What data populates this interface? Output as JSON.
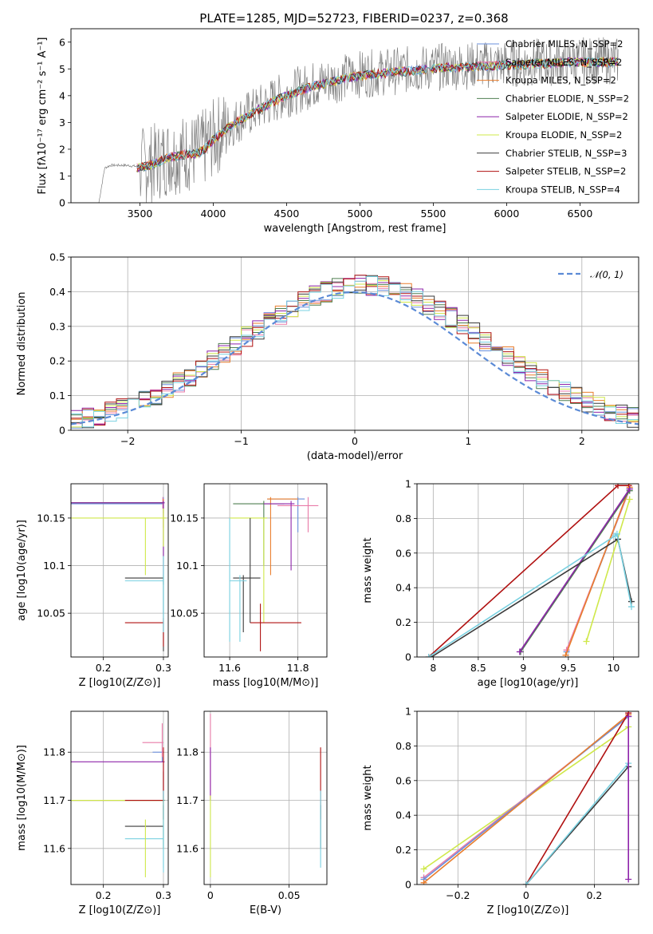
{
  "figure": {
    "title": "PLATE=1285, MJD=52723, FIBERID=0237, z=0.368"
  },
  "colors": {
    "Chabrier MILES": "#6a8fdc",
    "Salpeter MILES": "#e97ba8",
    "Kroupa MILES": "#e97e2d",
    "Chabrier ELODIE": "#4f7f52",
    "Salpeter ELODIE": "#8e24aa",
    "Kroupa ELODIE": "#cfe84a",
    "Chabrier STELIB": "#3a3a3a",
    "Salpeter STELIB": "#b01010",
    "Kroupa STELIB": "#79d1e1",
    "data": "#808080",
    "normal_curve": "#5b8ad6"
  },
  "chart_data": [
    {
      "id": "spectrum",
      "type": "line",
      "xlabel": "wavelength [Angstrom, rest frame]",
      "ylabel": "Flux [fλ10⁻¹⁷ erg cm⁻² s⁻¹ A⁻¹]",
      "xlim": [
        3030,
        6900
      ],
      "ylim": [
        0,
        6.5
      ],
      "xticks": [
        3500,
        4000,
        4500,
        5000,
        5500,
        6000,
        6500
      ],
      "yticks": [
        0,
        1,
        2,
        3,
        4,
        5,
        6
      ],
      "legend_position": "upper right",
      "legend": [
        "Chabrier MILES, N_SSP=2",
        "Salpeter MILES, N_SSP=2",
        "Kroupa MILES, N_SSP=2",
        "Chabrier ELODIE, N_SSP=2",
        "Salpeter ELODIE, N_SSP=2",
        "Kroupa ELODIE, N_SSP=2",
        "Chabrier STELIB, N_SSP=3",
        "Salpeter STELIB, N_SSP=2",
        "Kroupa STELIB, N_SSP=4"
      ],
      "legend_series": [
        "Chabrier MILES",
        "Salpeter MILES",
        "Kroupa MILES",
        "Chabrier ELODIE",
        "Salpeter ELODIE",
        "Kroupa ELODIE",
        "Chabrier STELIB",
        "Salpeter STELIB",
        "Kroupa STELIB"
      ],
      "data_continuum": {
        "wavelength": [
          3220,
          3260,
          3300,
          3400,
          3500,
          3600,
          3700,
          3800,
          3900,
          3950,
          4000,
          4100,
          4200,
          4300,
          4400,
          4500,
          4600,
          4700,
          4800,
          4900,
          5000,
          5100,
          5200,
          5300,
          5400,
          5500,
          5600,
          5700,
          5800,
          5900,
          6000,
          6100,
          6200,
          6300,
          6400,
          6500,
          6600,
          6700,
          6760
        ],
        "flux": [
          0.0,
          1.3,
          1.4,
          1.4,
          1.35,
          1.5,
          1.75,
          1.85,
          1.9,
          2.1,
          2.4,
          2.85,
          3.2,
          3.5,
          3.8,
          4.05,
          4.25,
          4.45,
          4.55,
          4.7,
          4.8,
          4.85,
          4.9,
          4.95,
          5.0,
          5.05,
          5.1,
          5.1,
          5.15,
          5.15,
          5.2,
          5.2,
          5.25,
          5.25,
          5.3,
          5.3,
          5.3,
          5.3,
          5.3
        ]
      },
      "data_noise_start": 3500
    },
    {
      "id": "residuals",
      "type": "histogram",
      "xlabel": "(data-model)/error",
      "ylabel": "Normed distribution",
      "xlim": [
        -2.5,
        2.5
      ],
      "ylim": [
        0,
        0.5
      ],
      "xticks": [
        -2,
        -1,
        0,
        1,
        2
      ],
      "yticks": [
        0.0,
        0.1,
        0.2,
        0.3,
        0.4,
        0.5
      ],
      "legend": [
        "𝒩(0, 1)"
      ],
      "legend_position": "upper right",
      "grid": true,
      "bin_edges_range": [
        -2.6,
        2.6
      ],
      "bin_count": 52
    },
    {
      "id": "age_vs_Z",
      "type": "errorbar",
      "xlabel": "Z [log10(Z/Z⊙)]",
      "ylabel": "age  [log10(age/yr)]",
      "xlim": [
        0.146,
        0.308
      ],
      "ylim": [
        10.004,
        10.186
      ],
      "xticks": [
        0.2,
        0.3
      ],
      "yticks": [
        10.05,
        10.1,
        10.15
      ],
      "grid": true,
      "points": [
        {
          "s": "Chabrier MILES",
          "x": 0.3,
          "y": 10.165,
          "xerr": [
            0.146,
            0.3
          ],
          "yerr": [
            10.155,
            10.172
          ]
        },
        {
          "s": "Salpeter MILES",
          "x": 0.299,
          "y": 10.166,
          "xerr": [
            0.297,
            0.3
          ],
          "yerr": [
            10.16,
            10.172
          ]
        },
        {
          "s": "Kroupa MILES",
          "x": 0.3,
          "y": 10.166,
          "xerr": [
            0.146,
            0.301
          ],
          "yerr": [
            10.14,
            10.17
          ]
        },
        {
          "s": "Chabrier ELODIE",
          "x": 0.3,
          "y": 10.166,
          "xerr": [
            0.146,
            0.302
          ],
          "yerr": [
            10.08,
            10.168
          ]
        },
        {
          "s": "Salpeter ELODIE",
          "x": 0.3,
          "y": 10.166,
          "xerr": [
            0.146,
            0.302
          ],
          "yerr": [
            10.09,
            10.168
          ]
        },
        {
          "s": "Kroupa ELODIE",
          "x": 0.3,
          "y": 10.15,
          "xerr": [
            0.146,
            0.305
          ],
          "yerr": [
            10.12,
            10.16
          ]
        },
        {
          "s": "Chabrier STELIB",
          "x": 0.3,
          "y": 10.087,
          "xerr": [
            0.236,
            0.3
          ],
          "yerr": [
            10.01,
            10.09
          ]
        },
        {
          "s": "Salpeter STELIB",
          "x": 0.3,
          "y": 10.04,
          "xerr": [
            0.236,
            0.3
          ],
          "yerr": [
            10.015,
            10.045
          ]
        },
        {
          "s": "Kroupa STELIB",
          "x": 0.3,
          "y": 10.084,
          "xerr": [
            0.236,
            0.3
          ],
          "yerr": [
            10.03,
            10.088
          ]
        },
        {
          "s": "Kroupa ELODIE",
          "x": 0.27,
          "y": 10.15,
          "xerr": [
            0.27,
            0.27
          ],
          "yerr": [
            10.09,
            10.15
          ]
        },
        {
          "s": "Kroupa STELIB",
          "x": 0.3,
          "y": 10.1,
          "xerr": [
            0.3,
            0.3
          ],
          "yerr": [
            10.05,
            10.11
          ]
        }
      ]
    },
    {
      "id": "age_vs_mass",
      "type": "errorbar",
      "xlabel": "mass [log10(M/M⊙)]",
      "ylabel": "",
      "xlim": [
        11.525,
        11.885
      ],
      "ylim": [
        10.004,
        10.186
      ],
      "xticks": [
        11.6,
        11.8
      ],
      "yticks": [
        10.05,
        10.1,
        10.15
      ],
      "grid": true,
      "points": [
        {
          "s": "Chabrier MILES",
          "x": 11.8,
          "y": 10.17,
          "xerr": [
            11.71,
            11.82
          ],
          "yerr": [
            10.135,
            10.172
          ]
        },
        {
          "s": "Salpeter MILES",
          "x": 11.83,
          "y": 10.163,
          "xerr": [
            11.74,
            11.86
          ],
          "yerr": [
            10.135,
            10.172
          ]
        },
        {
          "s": "Kroupa MILES",
          "x": 11.72,
          "y": 10.17,
          "xerr": [
            11.71,
            11.8
          ],
          "yerr": [
            10.09,
            10.172
          ]
        },
        {
          "s": "Chabrier ELODIE",
          "x": 11.7,
          "y": 10.165,
          "xerr": [
            11.61,
            11.76
          ],
          "yerr": [
            10.1,
            10.168
          ]
        },
        {
          "s": "Salpeter ELODIE",
          "x": 11.78,
          "y": 10.165,
          "xerr": [
            11.7,
            11.79
          ],
          "yerr": [
            10.095,
            10.168
          ]
        },
        {
          "s": "Kroupa ELODIE",
          "x": 11.7,
          "y": 10.15,
          "xerr": [
            11.6,
            11.71
          ],
          "yerr": [
            10.04,
            10.15
          ]
        },
        {
          "s": "Chabrier STELIB",
          "x": 11.64,
          "y": 10.087,
          "xerr": [
            11.61,
            11.69
          ],
          "yerr": [
            10.03,
            10.09
          ]
        },
        {
          "s": "Salpeter STELIB",
          "x": 11.69,
          "y": 10.04,
          "xerr": [
            11.66,
            11.81
          ],
          "yerr": [
            10.01,
            10.06
          ]
        },
        {
          "s": "Kroupa STELIB",
          "x": 11.63,
          "y": 10.084,
          "xerr": [
            11.6,
            11.65
          ],
          "yerr": [
            10.02,
            10.09
          ]
        },
        {
          "s": "Chabrier STELIB",
          "x": 11.66,
          "y": 10.09,
          "xerr": [
            11.66,
            11.66
          ],
          "yerr": [
            10.04,
            10.15
          ]
        },
        {
          "s": "Kroupa STELIB",
          "x": 11.6,
          "y": 10.1,
          "xerr": [
            11.6,
            11.6
          ],
          "yerr": [
            10.02,
            10.15
          ]
        }
      ]
    },
    {
      "id": "weight_vs_age",
      "type": "line",
      "xlabel": "age  [log10(age/yr)]",
      "ylabel": "mass weight",
      "xlim": [
        7.82,
        10.28
      ],
      "ylim": [
        0,
        1
      ],
      "xticks": [
        8.0,
        8.5,
        9.0,
        9.5,
        10.0
      ],
      "yticks": [
        0.0,
        0.2,
        0.4,
        0.6,
        0.8,
        1.0
      ],
      "grid": true,
      "lines": [
        {
          "s": "Salpeter STELIB",
          "x": [
            7.95,
            10.05,
            10.17
          ],
          "y": [
            0.0,
            0.99,
            0.99
          ]
        },
        {
          "s": "Chabrier MILES",
          "x": [
            9.48,
            10.18
          ],
          "y": [
            0.03,
            0.97
          ]
        },
        {
          "s": "Salpeter MILES",
          "x": [
            9.48,
            10.18
          ],
          "y": [
            0.04,
            0.97
          ]
        },
        {
          "s": "Kroupa MILES",
          "x": [
            9.47,
            10.18
          ],
          "y": [
            0.01,
            0.98
          ]
        },
        {
          "s": "Chabrier ELODIE",
          "x": [
            8.97,
            10.18
          ],
          "y": [
            0.03,
            0.96
          ]
        },
        {
          "s": "Salpeter ELODIE",
          "x": [
            8.96,
            10.18
          ],
          "y": [
            0.03,
            0.97
          ]
        },
        {
          "s": "Kroupa ELODIE",
          "x": [
            9.7,
            10.18
          ],
          "y": [
            0.09,
            0.91
          ]
        },
        {
          "s": "Chabrier STELIB",
          "x": [
            7.98,
            10.05,
            10.2
          ],
          "y": [
            0.0,
            0.68,
            0.32
          ]
        },
        {
          "s": "Kroupa STELIB",
          "x": [
            7.95,
            10.02,
            10.04,
            10.2
          ],
          "y": [
            0.0,
            0.7,
            0.71,
            0.29
          ]
        }
      ]
    },
    {
      "id": "mass_vs_Z",
      "type": "errorbar",
      "xlabel": "Z [log10(Z/Z⊙)]",
      "ylabel": "mass [log10(M/M⊙)]",
      "xlim": [
        0.146,
        0.308
      ],
      "ylim": [
        11.525,
        11.885
      ],
      "xticks": [
        0.2,
        0.3
      ],
      "yticks": [
        11.6,
        11.7,
        11.8
      ],
      "grid": true,
      "points": [
        {
          "s": "Chabrier MILES",
          "x": 0.298,
          "y": 11.8,
          "xerr": [
            0.282,
            0.3
          ],
          "yerr": [
            11.78,
            11.82
          ]
        },
        {
          "s": "Salpeter MILES",
          "x": 0.298,
          "y": 11.82,
          "xerr": [
            0.265,
            0.3
          ],
          "yerr": [
            11.79,
            11.86
          ]
        },
        {
          "s": "Kroupa MILES",
          "x": 0.3,
          "y": 11.7,
          "xerr": [
            0.146,
            0.3
          ],
          "yerr": [
            11.68,
            11.72
          ]
        },
        {
          "s": "Chabrier ELODIE",
          "x": 0.3,
          "y": 11.7,
          "xerr": [
            0.146,
            0.302
          ],
          "yerr": [
            11.66,
            11.76
          ]
        },
        {
          "s": "Salpeter ELODIE",
          "x": 0.3,
          "y": 11.78,
          "xerr": [
            0.146,
            0.302
          ],
          "yerr": [
            11.7,
            11.79
          ]
        },
        {
          "s": "Kroupa ELODIE",
          "x": 0.3,
          "y": 11.7,
          "xerr": [
            0.146,
            0.3
          ],
          "yerr": [
            11.6,
            11.71
          ]
        },
        {
          "s": "Chabrier STELIB",
          "x": 0.3,
          "y": 11.646,
          "xerr": [
            0.236,
            0.3
          ],
          "yerr": [
            11.6,
            11.69
          ]
        },
        {
          "s": "Salpeter STELIB",
          "x": 0.3,
          "y": 11.7,
          "xerr": [
            0.236,
            0.3
          ],
          "yerr": [
            11.66,
            11.81
          ]
        },
        {
          "s": "Kroupa STELIB",
          "x": 0.3,
          "y": 11.62,
          "xerr": [
            0.236,
            0.3
          ],
          "yerr": [
            11.56,
            11.65
          ]
        },
        {
          "s": "Kroupa ELODIE",
          "x": 0.27,
          "y": 11.6,
          "xerr": [
            0.27,
            0.27
          ],
          "yerr": [
            11.54,
            11.66
          ]
        },
        {
          "s": "Kroupa STELIB",
          "x": 0.3,
          "y": 11.58,
          "xerr": [
            0.3,
            0.3
          ],
          "yerr": [
            11.55,
            11.72
          ]
        }
      ]
    },
    {
      "id": "mass_vs_EBV",
      "type": "errorbar",
      "xlabel": "E(B-V)",
      "ylabel": "",
      "xlim": [
        -0.004,
        0.074
      ],
      "ylim": [
        11.525,
        11.885
      ],
      "xticks": [
        0.0,
        0.05
      ],
      "yticks": [
        11.6,
        11.7,
        11.8
      ],
      "grid": true,
      "points": [
        {
          "s": "Salpeter MILES",
          "x": 0.0,
          "y": 11.82,
          "xerr": [
            0.0,
            0.0
          ],
          "yerr": [
            11.7,
            11.88
          ]
        },
        {
          "s": "Salpeter ELODIE",
          "x": 0.0,
          "y": 11.78,
          "xerr": [
            0.0,
            0.0
          ],
          "yerr": [
            11.7,
            11.81
          ]
        },
        {
          "s": "Kroupa ELODIE",
          "x": 0.0,
          "y": 11.7,
          "xerr": [
            0.0,
            0.0
          ],
          "yerr": [
            11.54,
            11.71
          ]
        },
        {
          "s": "Salpeter STELIB",
          "x": 0.07,
          "y": 11.7,
          "xerr": [
            0.07,
            0.07
          ],
          "yerr": [
            11.66,
            11.81
          ]
        },
        {
          "s": "Chabrier STELIB",
          "x": 0.07,
          "y": 11.646,
          "xerr": [
            0.07,
            0.07
          ],
          "yerr": [
            11.6,
            11.69
          ]
        },
        {
          "s": "Kroupa STELIB",
          "x": 0.07,
          "y": 11.62,
          "xerr": [
            0.07,
            0.07
          ],
          "yerr": [
            11.56,
            11.72
          ]
        }
      ]
    },
    {
      "id": "weight_vs_Z",
      "type": "line",
      "xlabel": "Z [log10(Z/Z⊙)]",
      "ylabel": "mass weight",
      "xlim": [
        -0.32,
        0.33
      ],
      "ylim": [
        0,
        1
      ],
      "xticks": [
        -0.2,
        0.0,
        0.2
      ],
      "yticks": [
        0.0,
        0.2,
        0.4,
        0.6,
        0.8,
        1.0
      ],
      "grid": true,
      "lines": [
        {
          "s": "Kroupa ELODIE",
          "x": [
            -0.3,
            0.3
          ],
          "y": [
            0.09,
            0.91
          ]
        },
        {
          "s": "Salpeter MILES",
          "x": [
            -0.3,
            0.3
          ],
          "y": [
            0.04,
            0.97
          ]
        },
        {
          "s": "Chabrier MILES",
          "x": [
            -0.3,
            0.3
          ],
          "y": [
            0.03,
            0.97
          ]
        },
        {
          "s": "Kroupa MILES",
          "x": [
            -0.3,
            0.3
          ],
          "y": [
            0.01,
            0.98
          ]
        },
        {
          "s": "Salpeter STELIB",
          "x": [
            0.0,
            0.3
          ],
          "y": [
            0.0,
            0.99
          ]
        },
        {
          "s": "Chabrier STELIB",
          "x": [
            0.0,
            0.3
          ],
          "y": [
            0.0,
            0.68
          ]
        },
        {
          "s": "Kroupa STELIB",
          "x": [
            0.0,
            0.3
          ],
          "y": [
            0.0,
            0.7
          ]
        },
        {
          "s": "Salpeter ELODIE",
          "x": [
            0.3,
            0.3
          ],
          "y": [
            0.03,
            0.97
          ]
        }
      ]
    }
  ]
}
